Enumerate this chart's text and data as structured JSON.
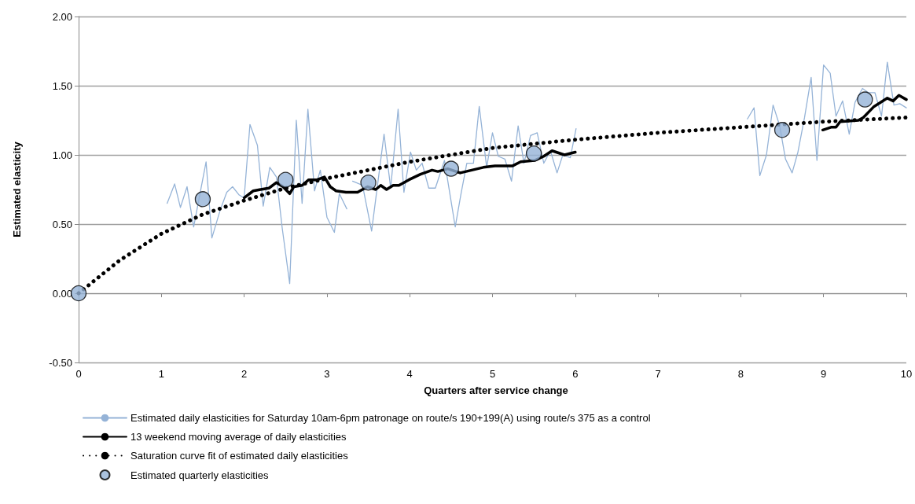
{
  "chart_data": {
    "type": "line",
    "xlabel": "Quarters after service change",
    "ylabel": "Estimated elasticity",
    "xlim": [
      0,
      10
    ],
    "xticks": [
      0,
      1,
      2,
      3,
      4,
      5,
      6,
      7,
      8,
      9,
      10
    ],
    "ylim": [
      -0.5,
      2
    ],
    "yticks": [
      {
        "value": -0.5,
        "label": "-0.50"
      },
      {
        "value": 0,
        "label": "0.00"
      },
      {
        "value": 0.5,
        "label": "0.50"
      },
      {
        "value": 1,
        "label": "1.00"
      },
      {
        "value": 1.5,
        "label": "1.50"
      },
      {
        "value": 2,
        "label": "2.00"
      }
    ],
    "grid": "y",
    "legend": "bottom",
    "marker": "none",
    "series": [
      {
        "name": "Estimated daily elasticities for Saturday 10am-6pm patronage on route/s 190+199(A) using route/s 375 as a control",
        "color": "#95b3d7",
        "line_style": "solid",
        "x": [
          1.07,
          1.16,
          1.23,
          1.31,
          1.39,
          1.54,
          1.61,
          1.71,
          1.79,
          1.86,
          1.94,
          2.0,
          2.07,
          2.16,
          2.23,
          2.31,
          2.39,
          2.46,
          2.55,
          2.63,
          2.7,
          2.77,
          2.85,
          2.92,
          3.0,
          3.09,
          3.15,
          3.24,
          3.27,
          3.31,
          3.43,
          3.54,
          3.69,
          3.77,
          3.86,
          3.93,
          4.01,
          4.08,
          4.15,
          4.23,
          4.31,
          4.42,
          4.55,
          4.62,
          4.69,
          4.77,
          4.84,
          4.93,
          5.0,
          5.07,
          5.15,
          5.23,
          5.31,
          5.38,
          5.46,
          5.54,
          5.62,
          5.7,
          5.78,
          5.85,
          5.94,
          6.01,
          7.0,
          8.08,
          8.16,
          8.23,
          8.31,
          8.39,
          8.47,
          8.54,
          8.62,
          8.69,
          8.77,
          8.85,
          8.92,
          9.0,
          9.08,
          9.15,
          9.23,
          9.31,
          9.38,
          9.47,
          9.54,
          9.62,
          9.7,
          9.77,
          9.85,
          9.92,
          10.0
        ],
        "values": [
          0.65,
          0.79,
          0.62,
          0.77,
          0.48,
          0.95,
          0.4,
          0.6,
          0.73,
          0.77,
          0.71,
          0.69,
          1.22,
          1.07,
          0.63,
          0.91,
          0.84,
          0.47,
          0.07,
          1.25,
          0.65,
          1.33,
          0.74,
          0.89,
          0.55,
          0.44,
          0.72,
          0.61,
          null,
          0.81,
          0.78,
          0.45,
          1.15,
          0.76,
          1.33,
          0.73,
          1.02,
          0.89,
          0.94,
          0.76,
          0.76,
          0.96,
          0.48,
          0.72,
          0.94,
          0.94,
          1.35,
          0.91,
          1.16,
          0.99,
          0.97,
          0.81,
          1.21,
          0.94,
          1.14,
          1.16,
          0.94,
          1.03,
          0.87,
          1.0,
          0.98,
          1.19,
          null,
          1.26,
          1.34,
          0.85,
          1.0,
          1.36,
          1.21,
          0.97,
          0.87,
          1.02,
          1.27,
          1.56,
          0.96,
          1.65,
          1.59,
          1.28,
          1.39,
          1.15,
          1.38,
          1.48,
          1.45,
          1.45,
          1.28,
          1.67,
          1.36,
          1.37,
          1.34
        ]
      },
      {
        "name": "13 weekend moving average of daily elasticities",
        "color": "#000000",
        "line_style": "solid",
        "x": [
          2.0,
          2.11,
          2.2,
          2.3,
          2.39,
          2.47,
          2.55,
          2.6,
          2.7,
          2.78,
          2.88,
          2.97,
          3.04,
          3.11,
          3.23,
          3.37,
          3.49,
          3.59,
          3.65,
          3.72,
          3.8,
          3.87,
          3.99,
          4.13,
          4.27,
          4.34,
          4.46,
          4.61,
          4.75,
          4.89,
          5.03,
          5.24,
          5.34,
          5.51,
          5.62,
          5.72,
          5.87,
          6.0,
          7.5,
          8.99,
          9.09,
          9.15,
          9.2,
          9.42,
          9.48,
          9.61,
          9.77,
          9.84,
          9.91,
          10.0
        ],
        "values": [
          0.69,
          0.74,
          0.75,
          0.76,
          0.8,
          0.77,
          0.72,
          0.77,
          0.78,
          0.82,
          0.82,
          0.84,
          0.77,
          0.74,
          0.73,
          0.73,
          0.77,
          0.75,
          0.78,
          0.75,
          0.78,
          0.78,
          0.82,
          0.86,
          0.89,
          0.88,
          0.9,
          0.87,
          0.89,
          0.91,
          0.92,
          0.92,
          0.95,
          0.96,
          0.99,
          1.03,
          1.0,
          1.02,
          null,
          1.18,
          1.2,
          1.2,
          1.24,
          1.25,
          1.27,
          1.35,
          1.41,
          1.39,
          1.43,
          1.4
        ]
      },
      {
        "name": "Saturation curve fit of estimated daily elasticities",
        "color": "#000000",
        "line_style": "dotted",
        "x": [
          0,
          0.5,
          1,
          1.5,
          2,
          2.5,
          3,
          4,
          5,
          6,
          7,
          8,
          9,
          10
        ],
        "values": [
          0,
          0.24,
          0.43,
          0.57,
          0.67,
          0.76,
          0.83,
          0.95,
          1.05,
          1.11,
          1.16,
          1.2,
          1.24,
          1.27
        ]
      },
      {
        "name": "Estimated quarterly elasticities",
        "type": "scatter",
        "marker": "circle",
        "color": "#95b3d7",
        "x": [
          0,
          1.5,
          2.5,
          3.5,
          4.5,
          5.5,
          8.5,
          9.5
        ],
        "values": [
          0,
          0.68,
          0.82,
          0.8,
          0.9,
          1.01,
          1.18,
          1.4
        ]
      }
    ]
  }
}
